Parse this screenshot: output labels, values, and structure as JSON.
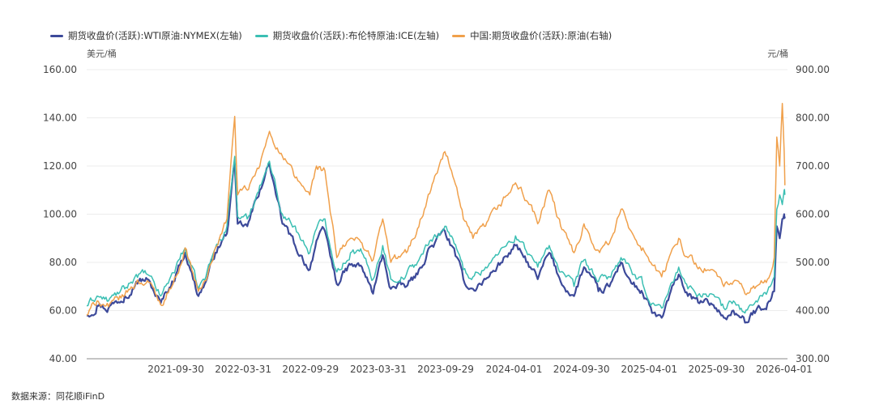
{
  "legend": [
    {
      "label": "期货收盘价(活跃):WTI原油:NYMEX(左轴)",
      "color": "#3d4a9a"
    },
    {
      "label": "期货收盘价(活跃):布伦特原油:ICE(左轴)",
      "color": "#3bbfb3"
    },
    {
      "label": "中国:期货收盘价(活跃):原油(右轴)",
      "color": "#f0a04b"
    }
  ],
  "unit_left": "美元/桶",
  "unit_right": "元/桶",
  "source": "数据来源：同花顺iFinD",
  "chart_data": {
    "type": "line",
    "title": "",
    "left_axis": {
      "ylim": [
        40,
        160
      ],
      "ticks": [
        "40.00",
        "60.00",
        "80.00",
        "100.00",
        "120.00",
        "140.00",
        "160.00"
      ]
    },
    "right_axis": {
      "ylim": [
        300,
        900
      ],
      "ticks": [
        "300.00",
        "400.00",
        "500.00",
        "600.00",
        "700.00",
        "800.00",
        "900.00"
      ]
    },
    "x_ticks": [
      "2021-09-30",
      "2022-03-31",
      "2022-09-29",
      "2023-03-31",
      "2023-09-29",
      "2024-04-01",
      "2024-09-30",
      "2025-04-01",
      "2025-09-30",
      "2026-04-01"
    ],
    "x_start": "2021-02-01",
    "x_end": "2026-04-10",
    "series": [
      {
        "name": "期货收盘价(活跃):WTI原油:NYMEX(左轴)",
        "axis": "left",
        "color": "#3d4a9a",
        "points": [
          [
            "2021-02-01",
            58
          ],
          [
            "2021-03-01",
            62
          ],
          [
            "2021-04-01",
            61
          ],
          [
            "2021-05-15",
            66
          ],
          [
            "2021-06-15",
            72
          ],
          [
            "2021-07-15",
            73
          ],
          [
            "2021-08-20",
            63
          ],
          [
            "2021-09-30",
            75
          ],
          [
            "2021-10-25",
            84
          ],
          [
            "2021-11-30",
            66
          ],
          [
            "2021-12-20",
            72
          ],
          [
            "2022-01-15",
            84
          ],
          [
            "2022-02-15",
            92
          ],
          [
            "2022-03-08",
            121
          ],
          [
            "2022-03-16",
            96
          ],
          [
            "2022-04-11",
            95
          ],
          [
            "2022-05-15",
            110
          ],
          [
            "2022-06-10",
            121
          ],
          [
            "2022-07-15",
            96
          ],
          [
            "2022-08-15",
            88
          ],
          [
            "2022-09-27",
            77
          ],
          [
            "2022-10-15",
            89
          ],
          [
            "2022-11-07",
            93
          ],
          [
            "2022-12-09",
            71
          ],
          [
            "2023-01-15",
            79
          ],
          [
            "2023-02-15",
            78
          ],
          [
            "2023-03-17",
            67
          ],
          [
            "2023-04-12",
            83
          ],
          [
            "2023-05-04",
            69
          ],
          [
            "2023-06-15",
            70
          ],
          [
            "2023-07-15",
            75
          ],
          [
            "2023-08-10",
            84
          ],
          [
            "2023-09-27",
            93
          ],
          [
            "2023-10-15",
            87
          ],
          [
            "2023-11-16",
            73
          ],
          [
            "2023-12-12",
            69
          ],
          [
            "2024-01-15",
            73
          ],
          [
            "2024-02-15",
            78
          ],
          [
            "2024-04-05",
            87
          ],
          [
            "2024-05-15",
            78
          ],
          [
            "2024-06-04",
            73
          ],
          [
            "2024-07-05",
            84
          ],
          [
            "2024-08-05",
            72
          ],
          [
            "2024-09-10",
            66
          ],
          [
            "2024-10-07",
            78
          ],
          [
            "2024-11-15",
            68
          ],
          [
            "2024-12-15",
            70
          ],
          [
            "2025-01-15",
            80
          ],
          [
            "2025-02-15",
            71
          ],
          [
            "2025-03-15",
            67
          ],
          [
            "2025-04-09",
            59
          ],
          [
            "2025-05-05",
            57
          ],
          [
            "2025-06-20",
            75
          ],
          [
            "2025-07-15",
            66
          ],
          [
            "2025-08-15",
            63
          ],
          [
            "2025-09-15",
            63
          ],
          [
            "2025-10-20",
            57
          ],
          [
            "2025-11-15",
            60
          ],
          [
            "2025-12-16",
            55
          ],
          [
            "2026-01-15",
            60
          ],
          [
            "2026-02-15",
            63
          ],
          [
            "2026-03-05",
            68
          ],
          [
            "2026-03-12",
            95
          ],
          [
            "2026-03-20",
            90
          ],
          [
            "2026-03-27",
            98
          ],
          [
            "2026-04-01",
            100
          ],
          [
            "2026-04-03",
            99
          ]
        ]
      },
      {
        "name": "期货收盘价(活跃):布伦特原油:ICE(左轴)",
        "axis": "left",
        "color": "#3bbfb3",
        "points": [
          [
            "2021-02-01",
            62
          ],
          [
            "2021-03-01",
            66
          ],
          [
            "2021-04-01",
            64
          ],
          [
            "2021-05-15",
            69
          ],
          [
            "2021-06-15",
            75
          ],
          [
            "2021-07-15",
            75
          ],
          [
            "2021-08-20",
            66
          ],
          [
            "2021-09-30",
            78
          ],
          [
            "2021-10-25",
            86
          ],
          [
            "2021-11-30",
            69
          ],
          [
            "2021-12-20",
            74
          ],
          [
            "2022-01-15",
            86
          ],
          [
            "2022-02-15",
            95
          ],
          [
            "2022-03-08",
            124
          ],
          [
            "2022-03-16",
            99
          ],
          [
            "2022-04-11",
            98
          ],
          [
            "2022-05-15",
            112
          ],
          [
            "2022-06-10",
            122
          ],
          [
            "2022-07-15",
            100
          ],
          [
            "2022-08-15",
            95
          ],
          [
            "2022-09-27",
            84
          ],
          [
            "2022-10-15",
            94
          ],
          [
            "2022-11-07",
            98
          ],
          [
            "2022-12-09",
            76
          ],
          [
            "2023-01-15",
            84
          ],
          [
            "2023-02-15",
            84
          ],
          [
            "2023-03-17",
            73
          ],
          [
            "2023-04-12",
            87
          ],
          [
            "2023-05-04",
            73
          ],
          [
            "2023-06-15",
            75
          ],
          [
            "2023-07-15",
            80
          ],
          [
            "2023-08-10",
            87
          ],
          [
            "2023-09-27",
            95
          ],
          [
            "2023-10-15",
            91
          ],
          [
            "2023-11-16",
            77
          ],
          [
            "2023-12-12",
            74
          ],
          [
            "2024-01-15",
            78
          ],
          [
            "2024-02-15",
            83
          ],
          [
            "2024-04-05",
            91
          ],
          [
            "2024-05-15",
            83
          ],
          [
            "2024-06-04",
            78
          ],
          [
            "2024-07-05",
            87
          ],
          [
            "2024-08-05",
            76
          ],
          [
            "2024-09-10",
            70
          ],
          [
            "2024-10-07",
            81
          ],
          [
            "2024-11-15",
            72
          ],
          [
            "2024-12-15",
            74
          ],
          [
            "2025-01-15",
            82
          ],
          [
            "2025-02-15",
            75
          ],
          [
            "2025-03-15",
            71
          ],
          [
            "2025-04-09",
            63
          ],
          [
            "2025-05-05",
            61
          ],
          [
            "2025-06-20",
            78
          ],
          [
            "2025-07-15",
            69
          ],
          [
            "2025-08-15",
            67
          ],
          [
            "2025-09-15",
            67
          ],
          [
            "2025-10-20",
            61
          ],
          [
            "2025-11-15",
            64
          ],
          [
            "2025-12-16",
            59
          ],
          [
            "2026-01-15",
            64
          ],
          [
            "2026-02-15",
            68
          ],
          [
            "2026-03-05",
            74
          ],
          [
            "2026-03-12",
            102
          ],
          [
            "2026-03-20",
            108
          ],
          [
            "2026-03-27",
            104
          ],
          [
            "2026-04-01",
            110
          ],
          [
            "2026-04-03",
            108
          ]
        ]
      },
      {
        "name": "中国:期货收盘价(活跃):原油(右轴)",
        "axis": "right",
        "color": "#f0a04b",
        "points": [
          [
            "2021-02-01",
            390
          ],
          [
            "2021-03-01",
            420
          ],
          [
            "2021-04-01",
            408
          ],
          [
            "2021-05-15",
            432
          ],
          [
            "2021-06-15",
            458
          ],
          [
            "2021-07-15",
            462
          ],
          [
            "2021-08-20",
            412
          ],
          [
            "2021-09-30",
            470
          ],
          [
            "2021-10-25",
            530
          ],
          [
            "2021-11-30",
            440
          ],
          [
            "2021-12-20",
            462
          ],
          [
            "2022-01-15",
            530
          ],
          [
            "2022-02-15",
            590
          ],
          [
            "2022-03-08",
            803
          ],
          [
            "2022-03-16",
            640
          ],
          [
            "2022-04-11",
            650
          ],
          [
            "2022-05-15",
            700
          ],
          [
            "2022-06-10",
            772
          ],
          [
            "2022-07-15",
            720
          ],
          [
            "2022-08-15",
            680
          ],
          [
            "2022-09-27",
            640
          ],
          [
            "2022-10-15",
            700
          ],
          [
            "2022-11-07",
            690
          ],
          [
            "2022-12-09",
            510
          ],
          [
            "2023-01-15",
            550
          ],
          [
            "2023-02-15",
            540
          ],
          [
            "2023-03-17",
            505
          ],
          [
            "2023-04-12",
            590
          ],
          [
            "2023-05-04",
            500
          ],
          [
            "2023-06-15",
            520
          ],
          [
            "2023-07-15",
            570
          ],
          [
            "2023-08-10",
            630
          ],
          [
            "2023-09-27",
            730
          ],
          [
            "2023-10-15",
            690
          ],
          [
            "2023-11-16",
            590
          ],
          [
            "2023-12-12",
            550
          ],
          [
            "2024-01-15",
            575
          ],
          [
            "2024-02-15",
            610
          ],
          [
            "2024-04-05",
            665
          ],
          [
            "2024-05-15",
            620
          ],
          [
            "2024-06-04",
            580
          ],
          [
            "2024-07-05",
            650
          ],
          [
            "2024-08-05",
            575
          ],
          [
            "2024-09-10",
            520
          ],
          [
            "2024-10-07",
            580
          ],
          [
            "2024-11-15",
            525
          ],
          [
            "2024-12-15",
            540
          ],
          [
            "2025-01-15",
            610
          ],
          [
            "2025-02-15",
            560
          ],
          [
            "2025-03-15",
            530
          ],
          [
            "2025-04-09",
            495
          ],
          [
            "2025-05-05",
            470
          ],
          [
            "2025-06-20",
            550
          ],
          [
            "2025-07-15",
            510
          ],
          [
            "2025-08-15",
            490
          ],
          [
            "2025-09-15",
            485
          ],
          [
            "2025-10-20",
            450
          ],
          [
            "2025-11-15",
            460
          ],
          [
            "2025-12-16",
            435
          ],
          [
            "2026-01-15",
            450
          ],
          [
            "2026-02-15",
            465
          ],
          [
            "2026-03-05",
            510
          ],
          [
            "2026-03-12",
            760
          ],
          [
            "2026-03-20",
            700
          ],
          [
            "2026-03-27",
            830
          ],
          [
            "2026-04-01",
            730
          ],
          [
            "2026-04-03",
            660
          ]
        ]
      }
    ]
  }
}
